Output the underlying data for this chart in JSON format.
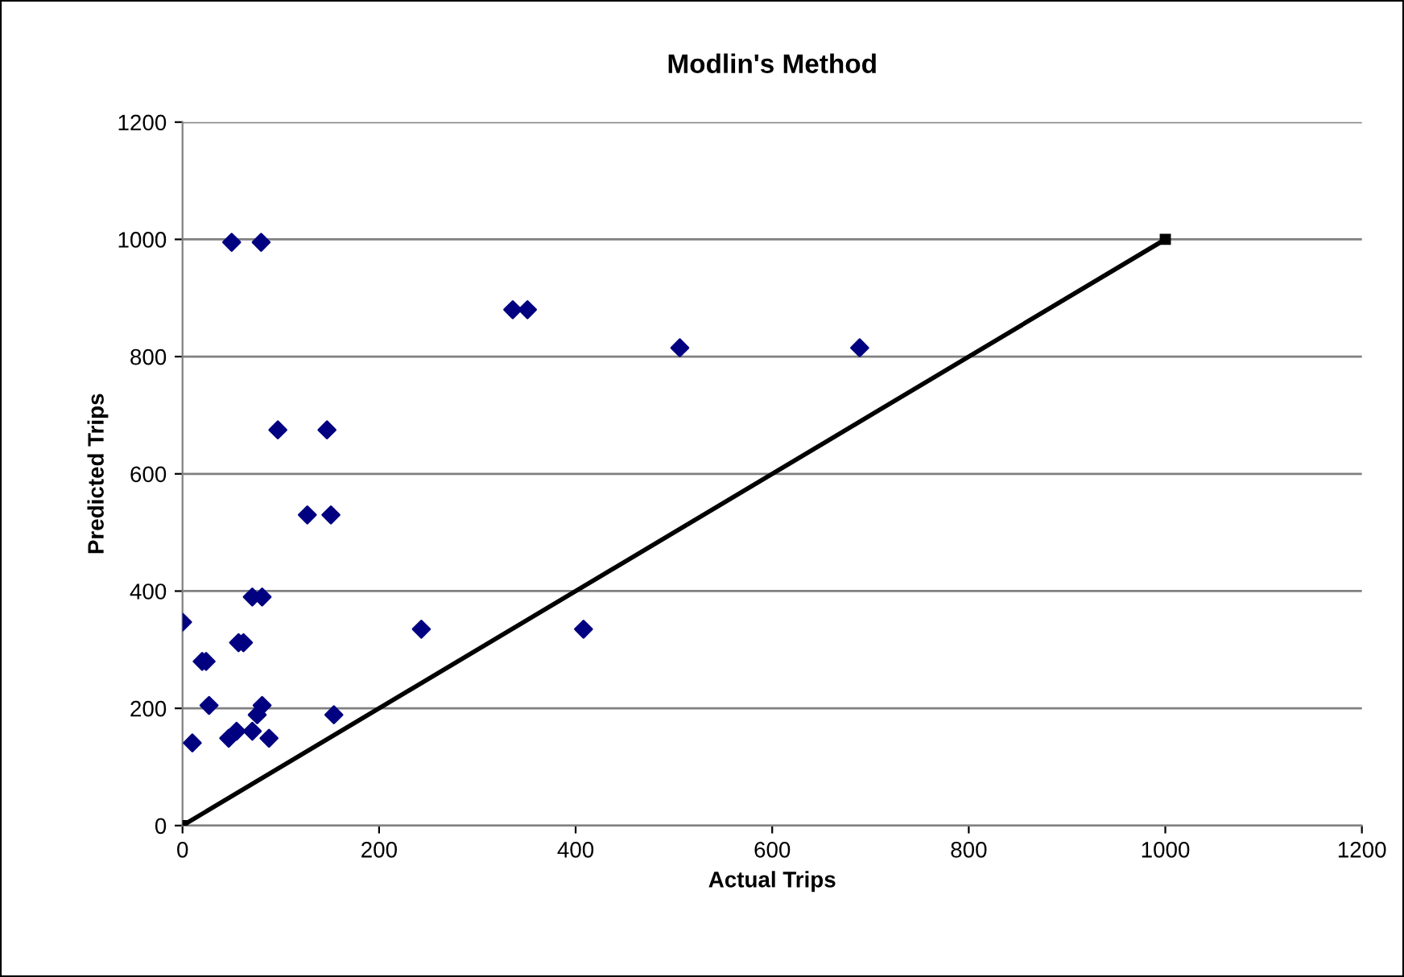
{
  "chart_data": {
    "type": "scatter",
    "title": "Modlin's Method",
    "xlabel": "Actual Trips",
    "ylabel": "Predicted Trips",
    "xlim": [
      0,
      1200
    ],
    "xticks": [
      0,
      200,
      400,
      600,
      800,
      1000,
      1200
    ],
    "ylim": [
      0,
      1200
    ],
    "yticks": [
      0,
      200,
      400,
      600,
      800,
      1000,
      1200
    ],
    "grid": "y",
    "legend": false,
    "series": [
      {
        "marker": "diamond",
        "color": "#000080",
        "x": [
          50,
          80,
          336,
          351,
          97,
          147,
          127,
          151,
          71,
          81,
          0,
          243,
          408,
          57,
          62,
          20,
          24,
          27,
          81,
          76,
          154,
          10,
          47,
          55,
          71,
          88,
          506,
          689
        ],
        "values": [
          995,
          995,
          880,
          880,
          675,
          675,
          530,
          530,
          390,
          390,
          347,
          335,
          335,
          312,
          312,
          280,
          280,
          205,
          205,
          189,
          189,
          141,
          149,
          161,
          161,
          149,
          815,
          815
        ]
      },
      {
        "type": "line",
        "marker": "square",
        "line_style": "solid",
        "color": "#000000",
        "x": [
          0,
          1000
        ],
        "values": [
          0,
          1000
        ]
      }
    ]
  }
}
